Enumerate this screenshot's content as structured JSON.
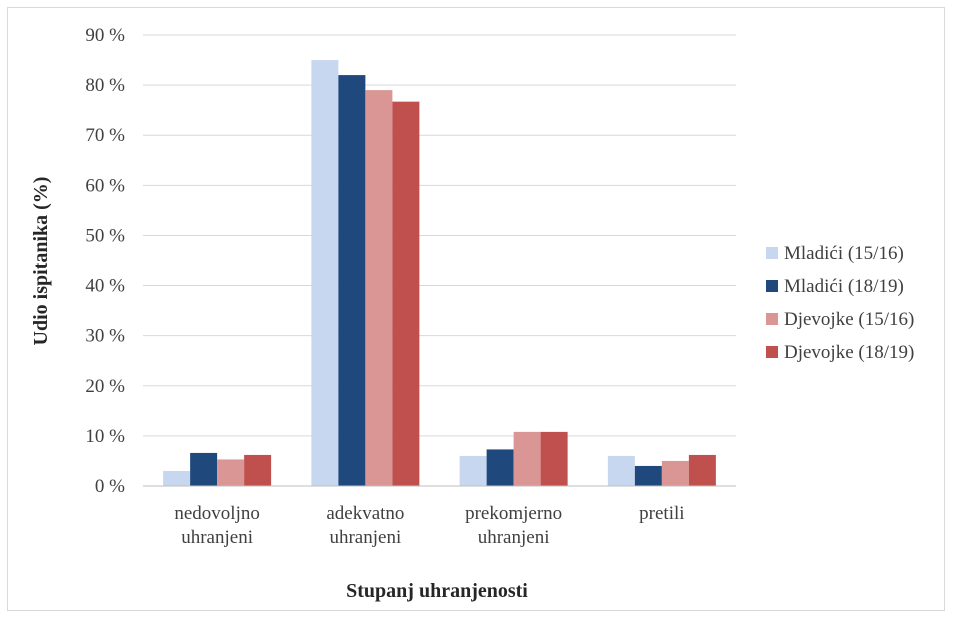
{
  "chart_data": {
    "type": "bar",
    "xlabel": "Stupanj uhranjenosti",
    "ylabel": "Udio ispitanika (%)",
    "ylim": [
      0,
      90
    ],
    "yticks": [
      "0 %",
      "10 %",
      "20 %",
      "30 %",
      "40 %",
      "50 %",
      "60 %",
      "70 %",
      "80 %",
      "90 %"
    ],
    "categories": [
      [
        "nedovoljno",
        "uhranjeni"
      ],
      [
        "adekvatno",
        "uhranjeni"
      ],
      [
        "prekomjerno",
        "uhranjeni"
      ],
      [
        "pretili"
      ]
    ],
    "series": [
      {
        "name": "Mladići (15/16)",
        "color": "#c6d7ef",
        "values": [
          3,
          85,
          6,
          6
        ]
      },
      {
        "name": "Mladići (18/19)",
        "color": "#1f497d",
        "values": [
          6.6,
          82,
          7.3,
          4
        ]
      },
      {
        "name": "Djevojke (15/16)",
        "color": "#d99694",
        "values": [
          5.3,
          79,
          10.8,
          5
        ]
      },
      {
        "name": "Djevojke (18/19)",
        "color": "#c0504d",
        "values": [
          6.2,
          76.7,
          10.8,
          6.2
        ]
      }
    ],
    "grid": true,
    "legend_position": "right"
  }
}
